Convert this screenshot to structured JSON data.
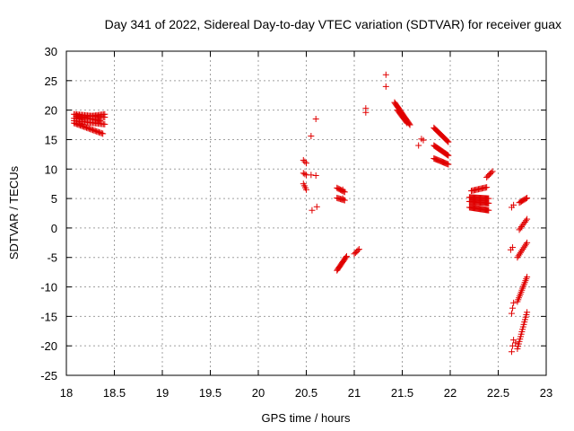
{
  "chart_data": {
    "type": "scatter",
    "title": "Day 341 of 2022, Sidereal Day-to-day VTEC variation (SDTVAR) for receiver guax",
    "xlabel": "GPS time / hours",
    "ylabel": "SDTVAR / TECUs",
    "xlim": [
      18,
      23
    ],
    "ylim": [
      -25,
      30
    ],
    "xticks": [
      18,
      18.5,
      19,
      19.5,
      20,
      20.5,
      21,
      21.5,
      22,
      22.5,
      23
    ],
    "xtick_labels": [
      "18",
      "18.5",
      "19",
      "19.5",
      "20",
      "20.5",
      "21",
      "21.5",
      "22",
      "22.5",
      "23"
    ],
    "yticks": [
      -25,
      -20,
      -15,
      -10,
      -5,
      0,
      5,
      10,
      15,
      20,
      25,
      30
    ],
    "ytick_labels": [
      "-25",
      "-20",
      "-15",
      "-10",
      "-5",
      "0",
      "5",
      "10",
      "15",
      "20",
      "25",
      "30"
    ],
    "grid": true,
    "marker": "+",
    "marker_color": "#e00000",
    "series": [
      {
        "name": "SDTVAR",
        "segments": [
          {
            "x0": 18.08,
            "y0": 19.3,
            "x1": 18.4,
            "y1": 18.8,
            "n": 24
          },
          {
            "x0": 18.08,
            "y0": 18.6,
            "x1": 18.4,
            "y1": 19.3,
            "n": 24
          },
          {
            "x0": 18.08,
            "y0": 18.2,
            "x1": 18.4,
            "y1": 17.6,
            "n": 24
          },
          {
            "x0": 18.08,
            "y0": 17.8,
            "x1": 18.38,
            "y1": 16.0,
            "n": 24
          },
          {
            "x0": 18.1,
            "y0": 19.0,
            "x1": 18.35,
            "y1": 18.2,
            "n": 18
          },
          {
            "x0": 21.42,
            "y0": 21.3,
            "x1": 21.58,
            "y1": 17.5,
            "n": 24
          },
          {
            "x0": 21.45,
            "y0": 20.0,
            "x1": 21.55,
            "y1": 17.8,
            "n": 14
          },
          {
            "x0": 21.83,
            "y0": 17.0,
            "x1": 21.98,
            "y1": 14.6,
            "n": 18
          },
          {
            "x0": 21.83,
            "y0": 14.0,
            "x1": 21.98,
            "y1": 12.3,
            "n": 18
          },
          {
            "x0": 21.83,
            "y0": 11.8,
            "x1": 21.98,
            "y1": 10.8,
            "n": 16
          },
          {
            "x0": 22.2,
            "y0": 5.2,
            "x1": 22.4,
            "y1": 5.0,
            "n": 24
          },
          {
            "x0": 22.2,
            "y0": 4.5,
            "x1": 22.4,
            "y1": 4.2,
            "n": 24
          },
          {
            "x0": 22.2,
            "y0": 3.5,
            "x1": 22.4,
            "y1": 3.0,
            "n": 24
          },
          {
            "x0": 22.22,
            "y0": 6.3,
            "x1": 22.38,
            "y1": 6.9,
            "n": 14
          },
          {
            "x0": 22.38,
            "y0": 8.6,
            "x1": 22.44,
            "y1": 9.6,
            "n": 6
          },
          {
            "x0": 20.82,
            "y0": 6.8,
            "x1": 20.9,
            "y1": 6.1,
            "n": 8
          },
          {
            "x0": 20.82,
            "y0": 5.1,
            "x1": 20.9,
            "y1": 4.7,
            "n": 8
          },
          {
            "x0": 20.82,
            "y0": -7.2,
            "x1": 20.92,
            "y1": -4.8,
            "n": 14
          },
          {
            "x0": 21.0,
            "y0": -4.4,
            "x1": 21.05,
            "y1": -3.6,
            "n": 5
          },
          {
            "x0": 20.47,
            "y0": 11.5,
            "x1": 20.5,
            "y1": 11.0,
            "n": 3
          },
          {
            "x0": 20.47,
            "y0": 9.3,
            "x1": 20.5,
            "y1": 9.0,
            "n": 3
          },
          {
            "x0": 20.47,
            "y0": 7.5,
            "x1": 20.5,
            "y1": 6.5,
            "n": 4
          },
          {
            "x0": 22.72,
            "y0": 4.3,
            "x1": 22.8,
            "y1": 5.1,
            "n": 8
          },
          {
            "x0": 22.72,
            "y0": -0.3,
            "x1": 22.8,
            "y1": 1.5,
            "n": 8
          },
          {
            "x0": 22.7,
            "y0": -5.0,
            "x1": 22.8,
            "y1": -2.5,
            "n": 10
          },
          {
            "x0": 22.7,
            "y0": -12.5,
            "x1": 22.8,
            "y1": -8.3,
            "n": 14
          },
          {
            "x0": 22.7,
            "y0": -20.5,
            "x1": 22.8,
            "y1": -14.3,
            "n": 16
          },
          {
            "x0": 22.64,
            "y0": -14.5,
            "x1": 22.66,
            "y1": -12.7,
            "n": 3
          },
          {
            "x0": 22.64,
            "y0": -21.0,
            "x1": 22.66,
            "y1": -19.0,
            "n": 3
          }
        ],
        "points": [
          [
            20.55,
            15.6
          ],
          [
            20.6,
            18.5
          ],
          [
            20.55,
            9.0
          ],
          [
            20.6,
            8.9
          ],
          [
            20.56,
            3.0
          ],
          [
            20.61,
            3.6
          ],
          [
            21.12,
            20.3
          ],
          [
            21.12,
            19.6
          ],
          [
            21.33,
            26.0
          ],
          [
            21.33,
            24.0
          ],
          [
            21.67,
            14.0
          ],
          [
            21.7,
            15.1
          ],
          [
            21.72,
            14.9
          ],
          [
            22.63,
            -3.7
          ],
          [
            22.65,
            -3.3
          ],
          [
            22.64,
            3.5
          ],
          [
            22.66,
            3.9
          ],
          [
            22.68,
            -19.5
          ],
          [
            20.88,
            6.5
          ],
          [
            20.88,
            5.0
          ]
        ]
      }
    ]
  }
}
